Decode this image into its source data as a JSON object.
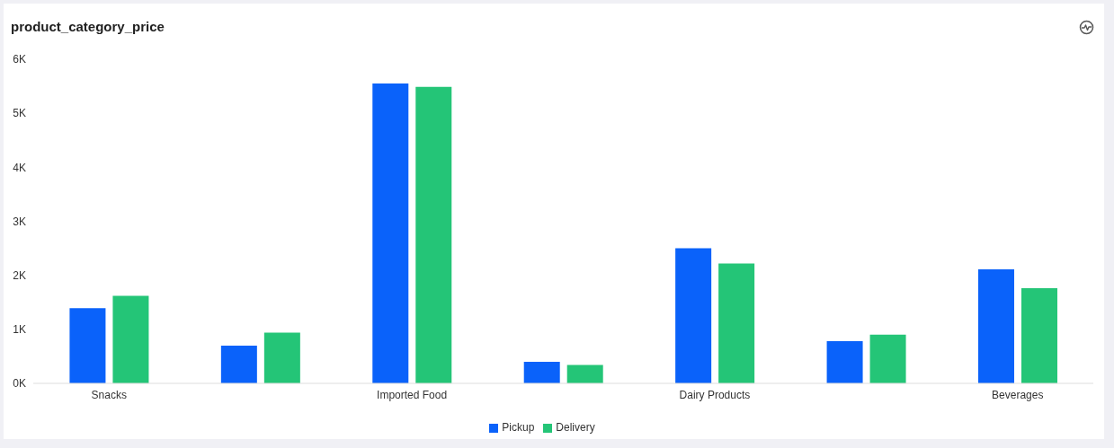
{
  "chart_data": {
    "type": "bar",
    "title": "product_category_price",
    "categories": [
      "Snacks",
      null,
      "Imported Food",
      null,
      "Dairy Products",
      null,
      "Beverages"
    ],
    "series": [
      {
        "name": "Pickup",
        "color": "#0a62fa",
        "values": [
          1390,
          700,
          5550,
          400,
          2500,
          780,
          2110
        ]
      },
      {
        "name": "Delivery",
        "color": "#24c577",
        "values": [
          1620,
          940,
          5490,
          340,
          2220,
          900,
          1760
        ]
      }
    ],
    "ylim": [
      0,
      6000
    ],
    "yticks": [
      {
        "value": 0,
        "label": "0K"
      },
      {
        "value": 1000,
        "label": "1K"
      },
      {
        "value": 2000,
        "label": "2K"
      },
      {
        "value": 3000,
        "label": "3K"
      },
      {
        "value": 4000,
        "label": "4K"
      },
      {
        "value": 5000,
        "label": "5K"
      },
      {
        "value": 6000,
        "label": "6K"
      }
    ],
    "grid": false,
    "legend": "bottom"
  }
}
